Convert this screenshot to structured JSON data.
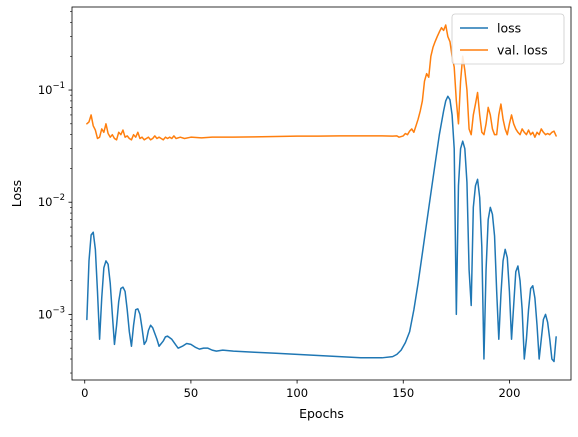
{
  "chart_data": {
    "type": "line",
    "title": "",
    "xlabel": "Epochs",
    "ylabel": "Loss",
    "xlim": [
      -6,
      229
    ],
    "ylim": [
      0.00026,
      0.55
    ],
    "yscale": "log",
    "grid": false,
    "legend_position": "top-right",
    "x_ticks": [
      0,
      50,
      100,
      150,
      200
    ],
    "x_tick_labels": [
      "0",
      "50",
      "100",
      "150",
      "200"
    ],
    "y_ticks": [
      0.001,
      0.01,
      0.1
    ],
    "y_tick_labels": [
      "10^-3",
      "10^-2",
      "10^-1"
    ],
    "series": [
      {
        "name": "loss",
        "color": "#1f77b4",
        "points": [
          [
            1,
            0.0009
          ],
          [
            2,
            0.003
          ],
          [
            3,
            0.0051
          ],
          [
            4,
            0.0054
          ],
          [
            5,
            0.0038
          ],
          [
            6,
            0.0016
          ],
          [
            7,
            0.0006
          ],
          [
            8,
            0.0014
          ],
          [
            9,
            0.0026
          ],
          [
            10,
            0.003
          ],
          [
            11,
            0.0028
          ],
          [
            12,
            0.0019
          ],
          [
            13,
            0.001
          ],
          [
            14,
            0.00054
          ],
          [
            15,
            0.0008
          ],
          [
            16,
            0.0013
          ],
          [
            17,
            0.0017
          ],
          [
            18,
            0.00175
          ],
          [
            19,
            0.0016
          ],
          [
            20,
            0.0011
          ],
          [
            21,
            0.0007
          ],
          [
            22,
            0.00052
          ],
          [
            23,
            0.0008
          ],
          [
            24,
            0.0011
          ],
          [
            25,
            0.00112
          ],
          [
            26,
            0.001
          ],
          [
            27,
            0.00075
          ],
          [
            28,
            0.00054
          ],
          [
            29,
            0.00058
          ],
          [
            30,
            0.00072
          ],
          [
            31,
            0.0008
          ],
          [
            32,
            0.00076
          ],
          [
            34,
            0.0006
          ],
          [
            35,
            0.00052
          ],
          [
            37,
            0.00058
          ],
          [
            38,
            0.00063
          ],
          [
            39,
            0.00064
          ],
          [
            41,
            0.0006
          ],
          [
            43,
            0.00053
          ],
          [
            44,
            0.0005
          ],
          [
            46,
            0.00052
          ],
          [
            48,
            0.00055
          ],
          [
            50,
            0.00054
          ],
          [
            52,
            0.00051
          ],
          [
            54,
            0.00049
          ],
          [
            56,
            0.0005
          ],
          [
            58,
            0.0005
          ],
          [
            60,
            0.00048
          ],
          [
            62,
            0.00047
          ],
          [
            65,
            0.00048
          ],
          [
            70,
            0.00047
          ],
          [
            80,
            0.00046
          ],
          [
            90,
            0.00045
          ],
          [
            100,
            0.00044
          ],
          [
            110,
            0.00043
          ],
          [
            120,
            0.00042
          ],
          [
            130,
            0.00041
          ],
          [
            140,
            0.00041
          ],
          [
            145,
            0.00042
          ],
          [
            147,
            0.00044
          ],
          [
            149,
            0.00048
          ],
          [
            151,
            0.00056
          ],
          [
            153,
            0.0007
          ],
          [
            155,
            0.0011
          ],
          [
            157,
            0.0019
          ],
          [
            159,
            0.0035
          ],
          [
            161,
            0.0065
          ],
          [
            163,
            0.012
          ],
          [
            165,
            0.022
          ],
          [
            167,
            0.04
          ],
          [
            169,
            0.065
          ],
          [
            170,
            0.08
          ],
          [
            171,
            0.088
          ],
          [
            172,
            0.082
          ],
          [
            173,
            0.06
          ],
          [
            174,
            0.03
          ],
          [
            175,
            0.001
          ],
          [
            176,
            0.014
          ],
          [
            177,
            0.03
          ],
          [
            178,
            0.035
          ],
          [
            179,
            0.03
          ],
          [
            180,
            0.015
          ],
          [
            181,
            0.0025
          ],
          [
            182,
            0.0012
          ],
          [
            183,
            0.009
          ],
          [
            184,
            0.014
          ],
          [
            185,
            0.016
          ],
          [
            186,
            0.011
          ],
          [
            187,
            0.004
          ],
          [
            188,
            0.0004
          ],
          [
            189,
            0.0025
          ],
          [
            190,
            0.007
          ],
          [
            191,
            0.009
          ],
          [
            192,
            0.0078
          ],
          [
            193,
            0.005
          ],
          [
            194,
            0.0016
          ],
          [
            195,
            0.0006
          ],
          [
            196,
            0.0015
          ],
          [
            197,
            0.003
          ],
          [
            198,
            0.0038
          ],
          [
            199,
            0.0032
          ],
          [
            200,
            0.0016
          ],
          [
            201,
            0.0006
          ],
          [
            202,
            0.0012
          ],
          [
            203,
            0.0024
          ],
          [
            204,
            0.0027
          ],
          [
            205,
            0.002
          ],
          [
            206,
            0.0011
          ],
          [
            207,
            0.0004
          ],
          [
            208,
            0.0006
          ],
          [
            209,
            0.0011
          ],
          [
            210,
            0.0017
          ],
          [
            211,
            0.0018
          ],
          [
            212,
            0.0014
          ],
          [
            213,
            0.0008
          ],
          [
            214,
            0.0004
          ],
          [
            215,
            0.0006
          ],
          [
            216,
            0.0009
          ],
          [
            217,
            0.001
          ],
          [
            218,
            0.00085
          ],
          [
            219,
            0.0006
          ],
          [
            220,
            0.0004
          ],
          [
            221,
            0.00038
          ],
          [
            222,
            0.00063
          ]
        ]
      },
      {
        "name": "val. loss",
        "color": "#ff7f0e",
        "points": [
          [
            1,
            0.05
          ],
          [
            2,
            0.052
          ],
          [
            3,
            0.06
          ],
          [
            4,
            0.048
          ],
          [
            5,
            0.044
          ],
          [
            6,
            0.037
          ],
          [
            7,
            0.038
          ],
          [
            8,
            0.045
          ],
          [
            9,
            0.042
          ],
          [
            10,
            0.05
          ],
          [
            11,
            0.041
          ],
          [
            12,
            0.038
          ],
          [
            13,
            0.04
          ],
          [
            14,
            0.037
          ],
          [
            15,
            0.036
          ],
          [
            16,
            0.042
          ],
          [
            17,
            0.04
          ],
          [
            18,
            0.044
          ],
          [
            19,
            0.038
          ],
          [
            20,
            0.039
          ],
          [
            21,
            0.037
          ],
          [
            22,
            0.036
          ],
          [
            23,
            0.04
          ],
          [
            24,
            0.038
          ],
          [
            25,
            0.042
          ],
          [
            26,
            0.037
          ],
          [
            27,
            0.038
          ],
          [
            28,
            0.036
          ],
          [
            29,
            0.037
          ],
          [
            30,
            0.038
          ],
          [
            31,
            0.036
          ],
          [
            32,
            0.037
          ],
          [
            33,
            0.039
          ],
          [
            34,
            0.037
          ],
          [
            35,
            0.038
          ],
          [
            36,
            0.037
          ],
          [
            37,
            0.036
          ],
          [
            38,
            0.038
          ],
          [
            39,
            0.037
          ],
          [
            40,
            0.038
          ],
          [
            41,
            0.037
          ],
          [
            42,
            0.039
          ],
          [
            43,
            0.037
          ],
          [
            45,
            0.038
          ],
          [
            47,
            0.037
          ],
          [
            50,
            0.038
          ],
          [
            55,
            0.0375
          ],
          [
            60,
            0.038
          ],
          [
            70,
            0.038
          ],
          [
            80,
            0.0382
          ],
          [
            90,
            0.0385
          ],
          [
            100,
            0.0388
          ],
          [
            110,
            0.0388
          ],
          [
            120,
            0.039
          ],
          [
            130,
            0.039
          ],
          [
            140,
            0.039
          ],
          [
            145,
            0.0388
          ],
          [
            147,
            0.039
          ],
          [
            148,
            0.038
          ],
          [
            150,
            0.039
          ],
          [
            151,
            0.041
          ],
          [
            152,
            0.04
          ],
          [
            153,
            0.043
          ],
          [
            154,
            0.045
          ],
          [
            155,
            0.042
          ],
          [
            156,
            0.048
          ],
          [
            157,
            0.055
          ],
          [
            158,
            0.065
          ],
          [
            159,
            0.08
          ],
          [
            160,
            0.12
          ],
          [
            161,
            0.14
          ],
          [
            162,
            0.13
          ],
          [
            163,
            0.2
          ],
          [
            164,
            0.24
          ],
          [
            165,
            0.27
          ],
          [
            166,
            0.3
          ],
          [
            167,
            0.33
          ],
          [
            168,
            0.36
          ],
          [
            169,
            0.34
          ],
          [
            170,
            0.38
          ],
          [
            171,
            0.3
          ],
          [
            172,
            0.27
          ],
          [
            173,
            0.2
          ],
          [
            174,
            0.16
          ],
          [
            175,
            0.08
          ],
          [
            176,
            0.05
          ],
          [
            177,
            0.12
          ],
          [
            178,
            0.2
          ],
          [
            179,
            0.15
          ],
          [
            180,
            0.1
          ],
          [
            181,
            0.045
          ],
          [
            182,
            0.04
          ],
          [
            183,
            0.06
          ],
          [
            184,
            0.075
          ],
          [
            185,
            0.095
          ],
          [
            186,
            0.06
          ],
          [
            187,
            0.042
          ],
          [
            188,
            0.04
          ],
          [
            189,
            0.05
          ],
          [
            190,
            0.07
          ],
          [
            191,
            0.06
          ],
          [
            192,
            0.045
          ],
          [
            193,
            0.04
          ],
          [
            194,
            0.04
          ],
          [
            195,
            0.06
          ],
          [
            196,
            0.075
          ],
          [
            197,
            0.055
          ],
          [
            198,
            0.045
          ],
          [
            199,
            0.04
          ],
          [
            200,
            0.05
          ],
          [
            201,
            0.06
          ],
          [
            202,
            0.05
          ],
          [
            203,
            0.045
          ],
          [
            204,
            0.042
          ],
          [
            205,
            0.04
          ],
          [
            206,
            0.045
          ],
          [
            207,
            0.042
          ],
          [
            208,
            0.04
          ],
          [
            209,
            0.044
          ],
          [
            210,
            0.04
          ],
          [
            211,
            0.042
          ],
          [
            212,
            0.038
          ],
          [
            213,
            0.042
          ],
          [
            214,
            0.04
          ],
          [
            215,
            0.045
          ],
          [
            216,
            0.042
          ],
          [
            217,
            0.04
          ],
          [
            218,
            0.041
          ],
          [
            219,
            0.04
          ],
          [
            220,
            0.042
          ],
          [
            221,
            0.043
          ],
          [
            222,
            0.039
          ]
        ]
      }
    ]
  }
}
